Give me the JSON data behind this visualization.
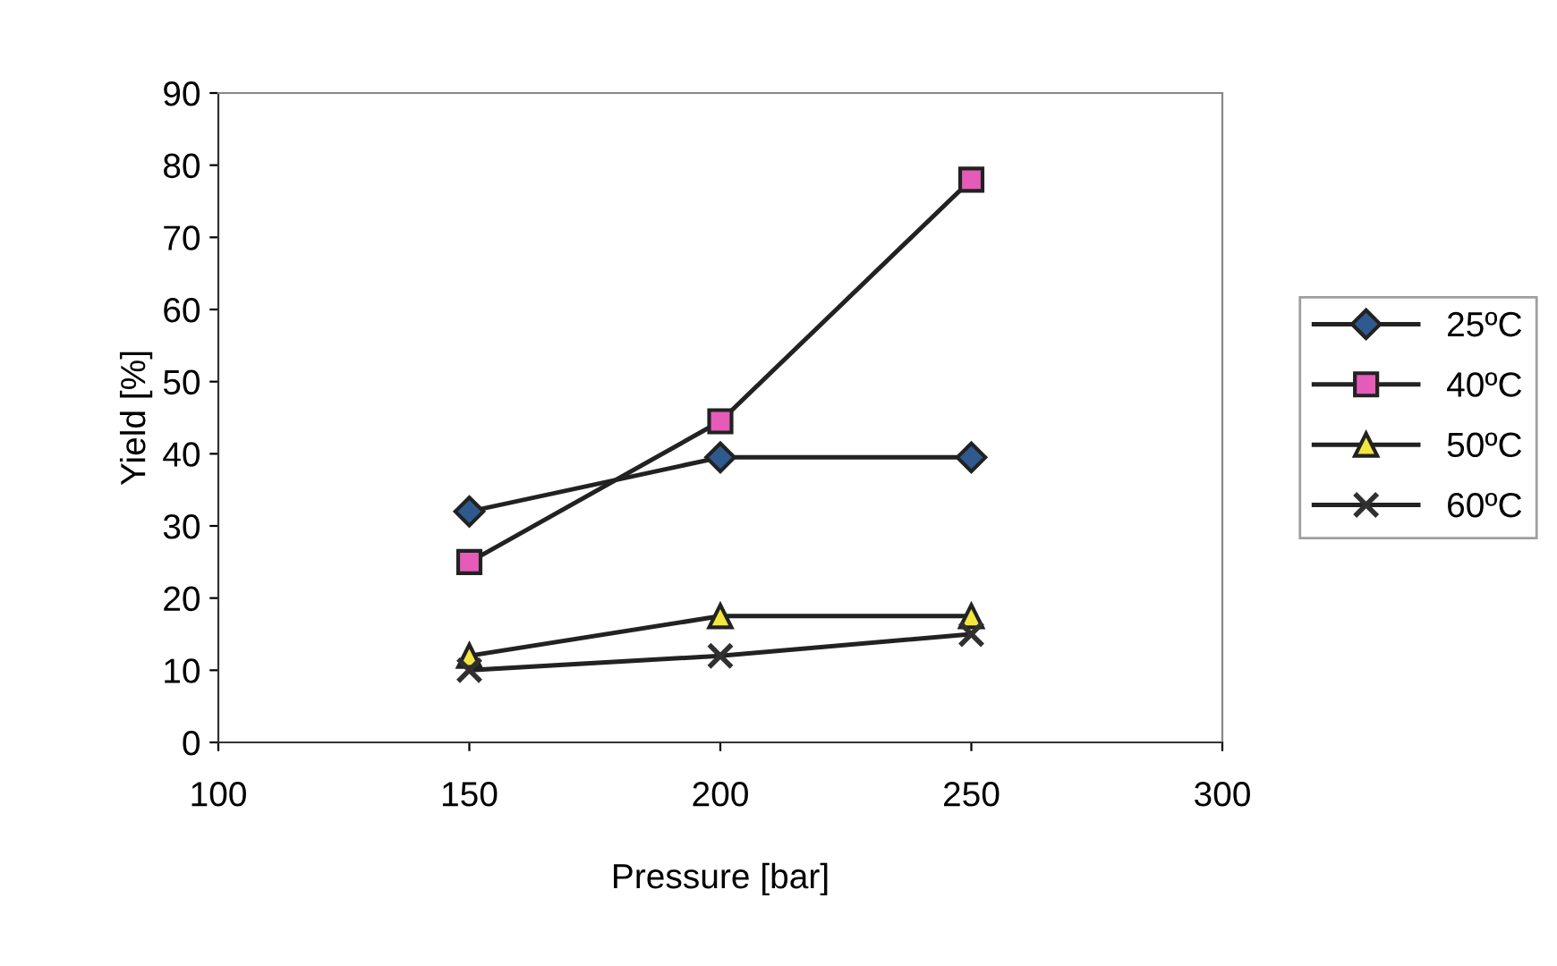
{
  "chart_data": {
    "type": "line",
    "xlabel": "Pressure [bar]",
    "ylabel": "Yield [%]",
    "x": [
      150,
      200,
      250
    ],
    "series": [
      {
        "name": "25ºC",
        "color": "#2f5a8f",
        "marker": "diamond",
        "values": [
          32,
          39.5,
          39.5
        ]
      },
      {
        "name": "40ºC",
        "color": "#e45bb8",
        "marker": "square",
        "values": [
          25,
          44.5,
          78
        ]
      },
      {
        "name": "50ºC",
        "color": "#f2e640",
        "marker": "triangle",
        "values": [
          12,
          17.5,
          17.5
        ]
      },
      {
        "name": "60ºC",
        "color": "#303030",
        "marker": "cross",
        "values": [
          10,
          12,
          15
        ]
      }
    ],
    "xlim": [
      100,
      300
    ],
    "xticks": [
      100,
      150,
      200,
      250,
      300
    ],
    "ylim": [
      0,
      90
    ],
    "yticks": [
      0,
      10,
      20,
      30,
      40,
      50,
      60,
      70,
      80,
      90
    ],
    "grid": false,
    "legend": "right",
    "line_style": "solid"
  }
}
